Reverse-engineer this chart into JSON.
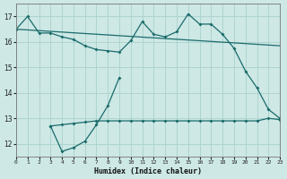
{
  "xlabel": "Humidex (Indice chaleur)",
  "ylabel": "",
  "bg_color": "#cde8e5",
  "line_color": "#1a6b6b",
  "grid_color": "#afd4d0",
  "line1": {
    "x": [
      0,
      1,
      2,
      3,
      4,
      5,
      6,
      7,
      8,
      9,
      10,
      11,
      12,
      13,
      14,
      15,
      16,
      17,
      18,
      19,
      20,
      21,
      22,
      23
    ],
    "y": [
      16.5,
      17.0,
      16.35,
      16.35,
      16.2,
      16.1,
      15.85,
      15.7,
      15.65,
      15.6,
      16.05,
      16.8,
      16.3,
      16.2,
      16.4,
      17.1,
      16.7,
      16.7,
      16.3,
      15.75,
      14.85,
      14.2,
      13.35,
      13.0
    ]
  },
  "line2": {
    "x": [
      0,
      23
    ],
    "y": [
      16.5,
      15.85
    ]
  },
  "line3_wiggly": {
    "x": [
      3,
      4,
      5,
      6,
      7,
      8,
      9
    ],
    "y": [
      12.7,
      11.7,
      11.85,
      12.1,
      12.75,
      13.5,
      14.6
    ]
  },
  "line3_flat": {
    "x": [
      3,
      4,
      5,
      6,
      7,
      8,
      9,
      10,
      11,
      12,
      13,
      14,
      15,
      16,
      17,
      18,
      19,
      20,
      21,
      22,
      23
    ],
    "y": [
      12.7,
      12.75,
      12.8,
      12.85,
      12.9,
      12.9,
      12.9,
      12.9,
      12.9,
      12.9,
      12.9,
      12.9,
      12.9,
      12.9,
      12.9,
      12.9,
      12.9,
      12.9,
      12.9,
      13.0,
      12.95
    ]
  },
  "xlim": [
    0,
    23
  ],
  "ylim": [
    11.5,
    17.5
  ],
  "yticks": [
    12,
    13,
    14,
    15,
    16,
    17
  ],
  "xticks": [
    0,
    1,
    2,
    3,
    4,
    5,
    6,
    7,
    8,
    9,
    10,
    11,
    12,
    13,
    14,
    15,
    16,
    17,
    18,
    19,
    20,
    21,
    22,
    23
  ]
}
